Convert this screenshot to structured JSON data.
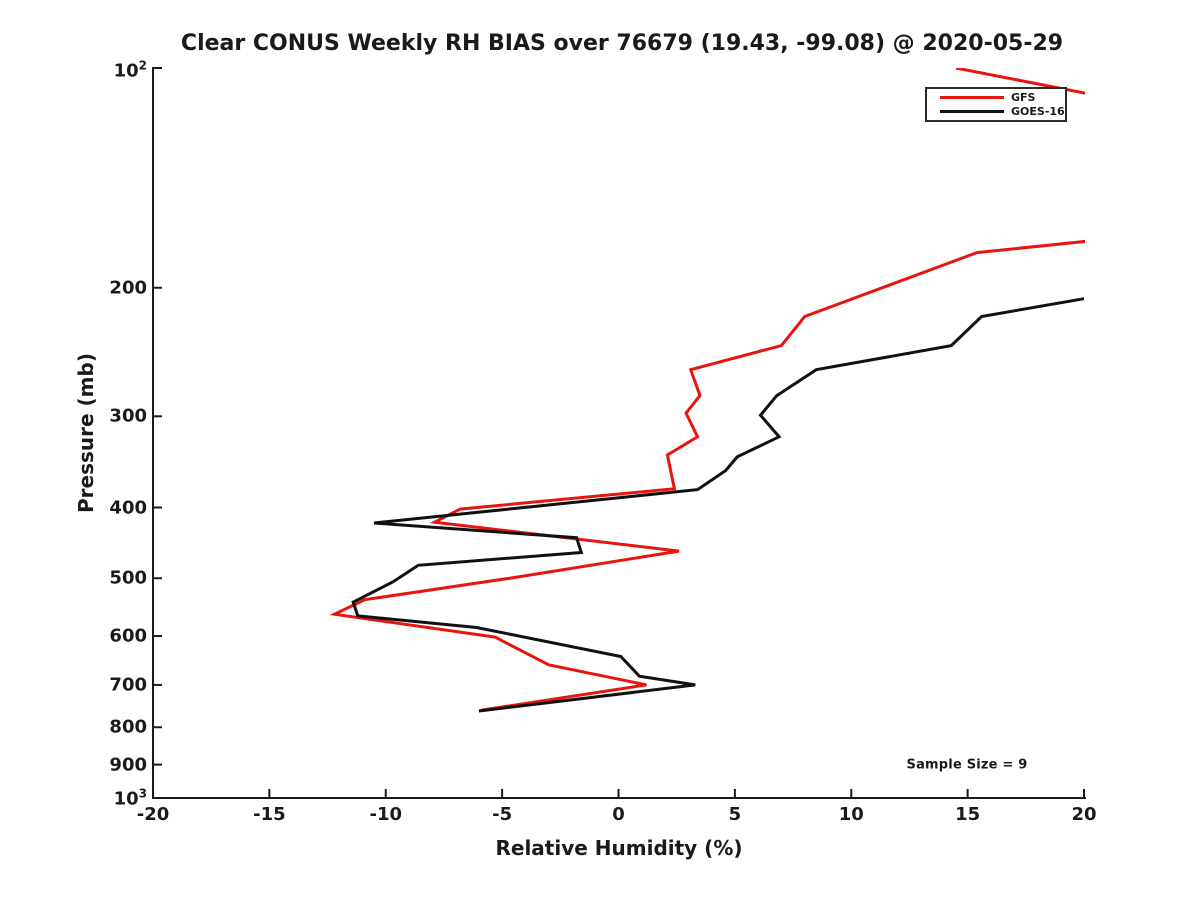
{
  "chart_data": {
    "type": "line",
    "title": "Clear CONUS Weekly RH BIAS over 76679 (19.43, -99.08) @ 2020-05-29",
    "xlabel": "Relative Humidity (%)",
    "ylabel": "Pressure (mb)",
    "note": "Sample Size = 9",
    "xlim": [
      -20,
      20
    ],
    "ylim": [
      100,
      1000
    ],
    "yscale": "log-inverted (100 mb at top, 1000 mb at bottom)",
    "grid": false,
    "legend_position": "upper right",
    "xticks": [
      -20,
      -15,
      -10,
      -5,
      0,
      5,
      10,
      15,
      20
    ],
    "yticks": [
      {
        "value": 100,
        "label": "10^2"
      },
      {
        "value": 200,
        "label": "200"
      },
      {
        "value": 300,
        "label": "300"
      },
      {
        "value": 400,
        "label": "400"
      },
      {
        "value": 500,
        "label": "500"
      },
      {
        "value": 600,
        "label": "600"
      },
      {
        "value": 700,
        "label": "700"
      },
      {
        "value": 800,
        "label": "800"
      },
      {
        "value": 900,
        "label": "900"
      },
      {
        "value": 1000,
        "label": "10^3"
      }
    ],
    "series": [
      {
        "name": "GFS",
        "color": "#e8150f",
        "points_rh_pressure": [
          [
            14.5,
            100
          ],
          [
            41.4,
            147
          ],
          [
            15.4,
            179
          ],
          [
            8.0,
            219
          ],
          [
            7.0,
            240
          ],
          [
            3.1,
            259
          ],
          [
            3.5,
            281
          ],
          [
            2.9,
            297
          ],
          [
            3.4,
            320
          ],
          [
            2.1,
            339
          ],
          [
            2.4,
            377
          ],
          [
            -6.8,
            402
          ],
          [
            -7.9,
            419
          ],
          [
            2.6,
            459
          ],
          [
            -4.5,
            499
          ],
          [
            -10.9,
            535
          ],
          [
            -12.2,
            560
          ],
          [
            -5.3,
            602
          ],
          [
            -3.0,
            657
          ],
          [
            1.2,
            700
          ],
          [
            -5.9,
            758
          ]
        ]
      },
      {
        "name": "GOES-16",
        "color": "#111111",
        "points_rh_pressure": [
          [
            20.0,
            207
          ],
          [
            15.6,
            219
          ],
          [
            14.3,
            240
          ],
          [
            8.5,
            259
          ],
          [
            6.8,
            281
          ],
          [
            6.1,
            299
          ],
          [
            6.9,
            320
          ],
          [
            5.1,
            341
          ],
          [
            4.6,
            356
          ],
          [
            3.4,
            378
          ],
          [
            -10.5,
            420
          ],
          [
            -1.8,
            440
          ],
          [
            -1.6,
            461
          ],
          [
            -8.6,
            480
          ],
          [
            -9.7,
            506
          ],
          [
            -11.4,
            539
          ],
          [
            -11.2,
            563
          ],
          [
            -6.1,
            584
          ],
          [
            0.1,
            640
          ],
          [
            0.9,
            681
          ],
          [
            3.3,
            700
          ],
          [
            -6.0,
            760
          ]
        ]
      }
    ],
    "axis_color": "#1a1a1a"
  }
}
